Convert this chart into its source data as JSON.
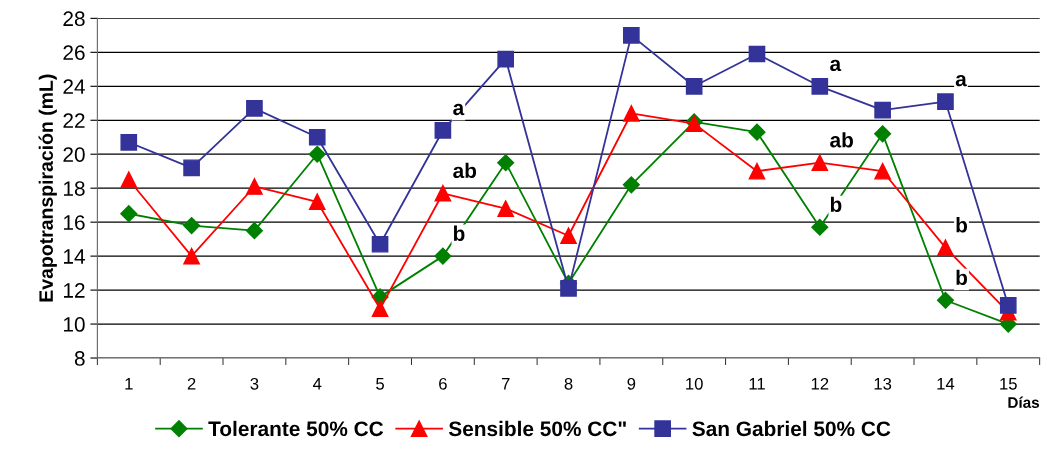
{
  "chart_data": {
    "type": "line",
    "xlabel": "Días",
    "ylabel": "Evapotranspiración (mL)",
    "categories": [
      "1",
      "2",
      "3",
      "4",
      "5",
      "6",
      "7",
      "8",
      "9",
      "10",
      "11",
      "12",
      "13",
      "14",
      "15"
    ],
    "series": [
      {
        "name": "Tolerante 50% CC",
        "color": "#008000",
        "marker": "diamond",
        "values": [
          16.5,
          15.8,
          15.5,
          20.0,
          11.6,
          14.0,
          19.5,
          12.4,
          18.2,
          21.9,
          21.3,
          15.7,
          21.2,
          11.4,
          10.0
        ]
      },
      {
        "name": "Sensible 50% CC\"",
        "color": "#ff0000",
        "marker": "triangle",
        "values": [
          18.5,
          14.0,
          18.1,
          17.2,
          10.9,
          17.7,
          16.8,
          15.2,
          22.4,
          21.8,
          19.0,
          19.5,
          19.0,
          14.5,
          10.7
        ]
      },
      {
        "name": "San Gabriel 50% CC",
        "color": "#333399",
        "marker": "square",
        "values": [
          20.7,
          19.2,
          22.7,
          21.0,
          14.7,
          21.4,
          25.6,
          12.1,
          27.0,
          24.0,
          25.9,
          24.0,
          22.6,
          23.1,
          11.1
        ]
      }
    ],
    "ylim": [
      8,
      28
    ],
    "yticks": [
      8,
      10,
      12,
      14,
      16,
      18,
      20,
      22,
      24,
      26,
      28
    ],
    "grid": "y",
    "legend": "bottom",
    "line_style": "solid",
    "annotations": [
      {
        "text": "a",
        "x": "6",
        "y": 21.4
      },
      {
        "text": "ab",
        "x": "6",
        "y": 17.7
      },
      {
        "text": "b",
        "x": "6",
        "y": 14.0
      },
      {
        "text": "a",
        "x": "12",
        "y": 24.0
      },
      {
        "text": "ab",
        "x": "12",
        "y": 19.5
      },
      {
        "text": "b",
        "x": "12",
        "y": 15.7
      },
      {
        "text": "a",
        "x": "14",
        "y": 23.1
      },
      {
        "text": "b",
        "x": "14",
        "y": 14.5
      },
      {
        "text": "b",
        "x": "14",
        "y": 11.4
      }
    ]
  }
}
